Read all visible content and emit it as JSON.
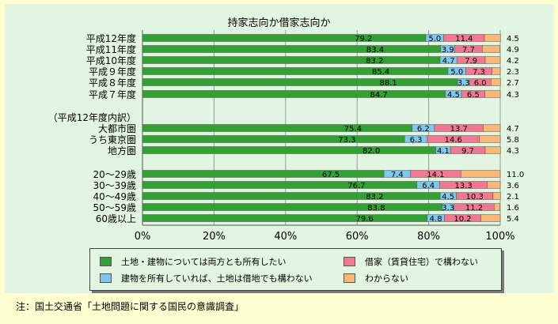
{
  "chart_data": {
    "type": "bar",
    "stacked": true,
    "orientation": "horizontal",
    "title": "持家志向か借家志向か",
    "categories": [
      "平成12年度",
      "平成11年度",
      "平成10年度",
      "平成９年度",
      "平成８年度",
      "平成７年度",
      "（平成12年度内訳）",
      "大都市圏",
      "うち東京圏",
      "地方圏",
      "20～29歳",
      "30～39歳",
      "40～49歳",
      "50～59歳",
      "60歳以上"
    ],
    "series": [
      {
        "name": "土地・建物については両方とも所有したい",
        "color": "#33a033",
        "values": [
          79.2,
          83.4,
          83.2,
          85.4,
          88.1,
          84.7,
          null,
          75.4,
          73.3,
          82.0,
          67.5,
          76.7,
          83.2,
          83.8,
          79.6
        ]
      },
      {
        "name": "建物を所有していれば、土地は借地でも構わない",
        "color": "#7fc7ec",
        "values": [
          5.0,
          3.9,
          4.7,
          5.0,
          3.3,
          4.5,
          null,
          6.2,
          6.3,
          4.1,
          7.4,
          6.4,
          4.5,
          3.3,
          4.8
        ]
      },
      {
        "name": "借家（賃貸住宅）で構わない",
        "color": "#f07890",
        "values": [
          11.4,
          7.7,
          7.9,
          7.3,
          6.0,
          6.5,
          null,
          13.7,
          14.6,
          9.7,
          14.1,
          13.3,
          10.3,
          11.2,
          10.2
        ]
      },
      {
        "name": "わからない",
        "color": "#f8b878",
        "values": [
          4.5,
          4.9,
          4.2,
          2.3,
          2.7,
          4.3,
          null,
          4.7,
          5.8,
          4.3,
          11.0,
          3.6,
          2.1,
          1.6,
          5.4
        ]
      }
    ],
    "value_labels": [
      [
        "79.2",
        "83.4",
        "83.2",
        "85.4",
        "88.1",
        "84.7",
        null,
        "75.4",
        "73.3",
        "82.0",
        "67.5",
        "76.7",
        "83.2",
        "83.8",
        "79.6"
      ],
      [
        "5.0",
        "3.9",
        "4.7",
        "5.0",
        "3.3",
        "4.5",
        null,
        "6.2",
        "6.3",
        "4.1",
        "7.4",
        "6.4",
        "4.5",
        "3.3",
        "4.8"
      ],
      [
        "11.4",
        "7.7",
        "7.9",
        "7.3",
        "6.0",
        "6.5",
        null,
        "13.7",
        "14.6",
        "9.7",
        "14.1",
        "13.3",
        "10.3",
        "11.2",
        "10.2"
      ],
      [
        "4.5",
        "4.9",
        "4.2",
        "2.3",
        "2.7",
        "4.3",
        null,
        "4.7",
        "5.8",
        "4.3",
        "11.0",
        "3.6",
        "2.1",
        "1.6",
        "5.4"
      ]
    ],
    "x_ticks": [
      "0%",
      "20%",
      "40%",
      "60%",
      "80%",
      "100%"
    ],
    "xlim": [
      0,
      100
    ],
    "grid": true,
    "legend_position": "bottom"
  },
  "legend": {
    "owner": "土地・建物については両方とも所有したい",
    "lease": "建物を所有していれば、土地は借地でも構わない",
    "rent": "借家（賃貸住宅）で構わない",
    "unknown": "わからない"
  },
  "note": "注：国土交通省「土地問題に関する国民の意識調査」"
}
